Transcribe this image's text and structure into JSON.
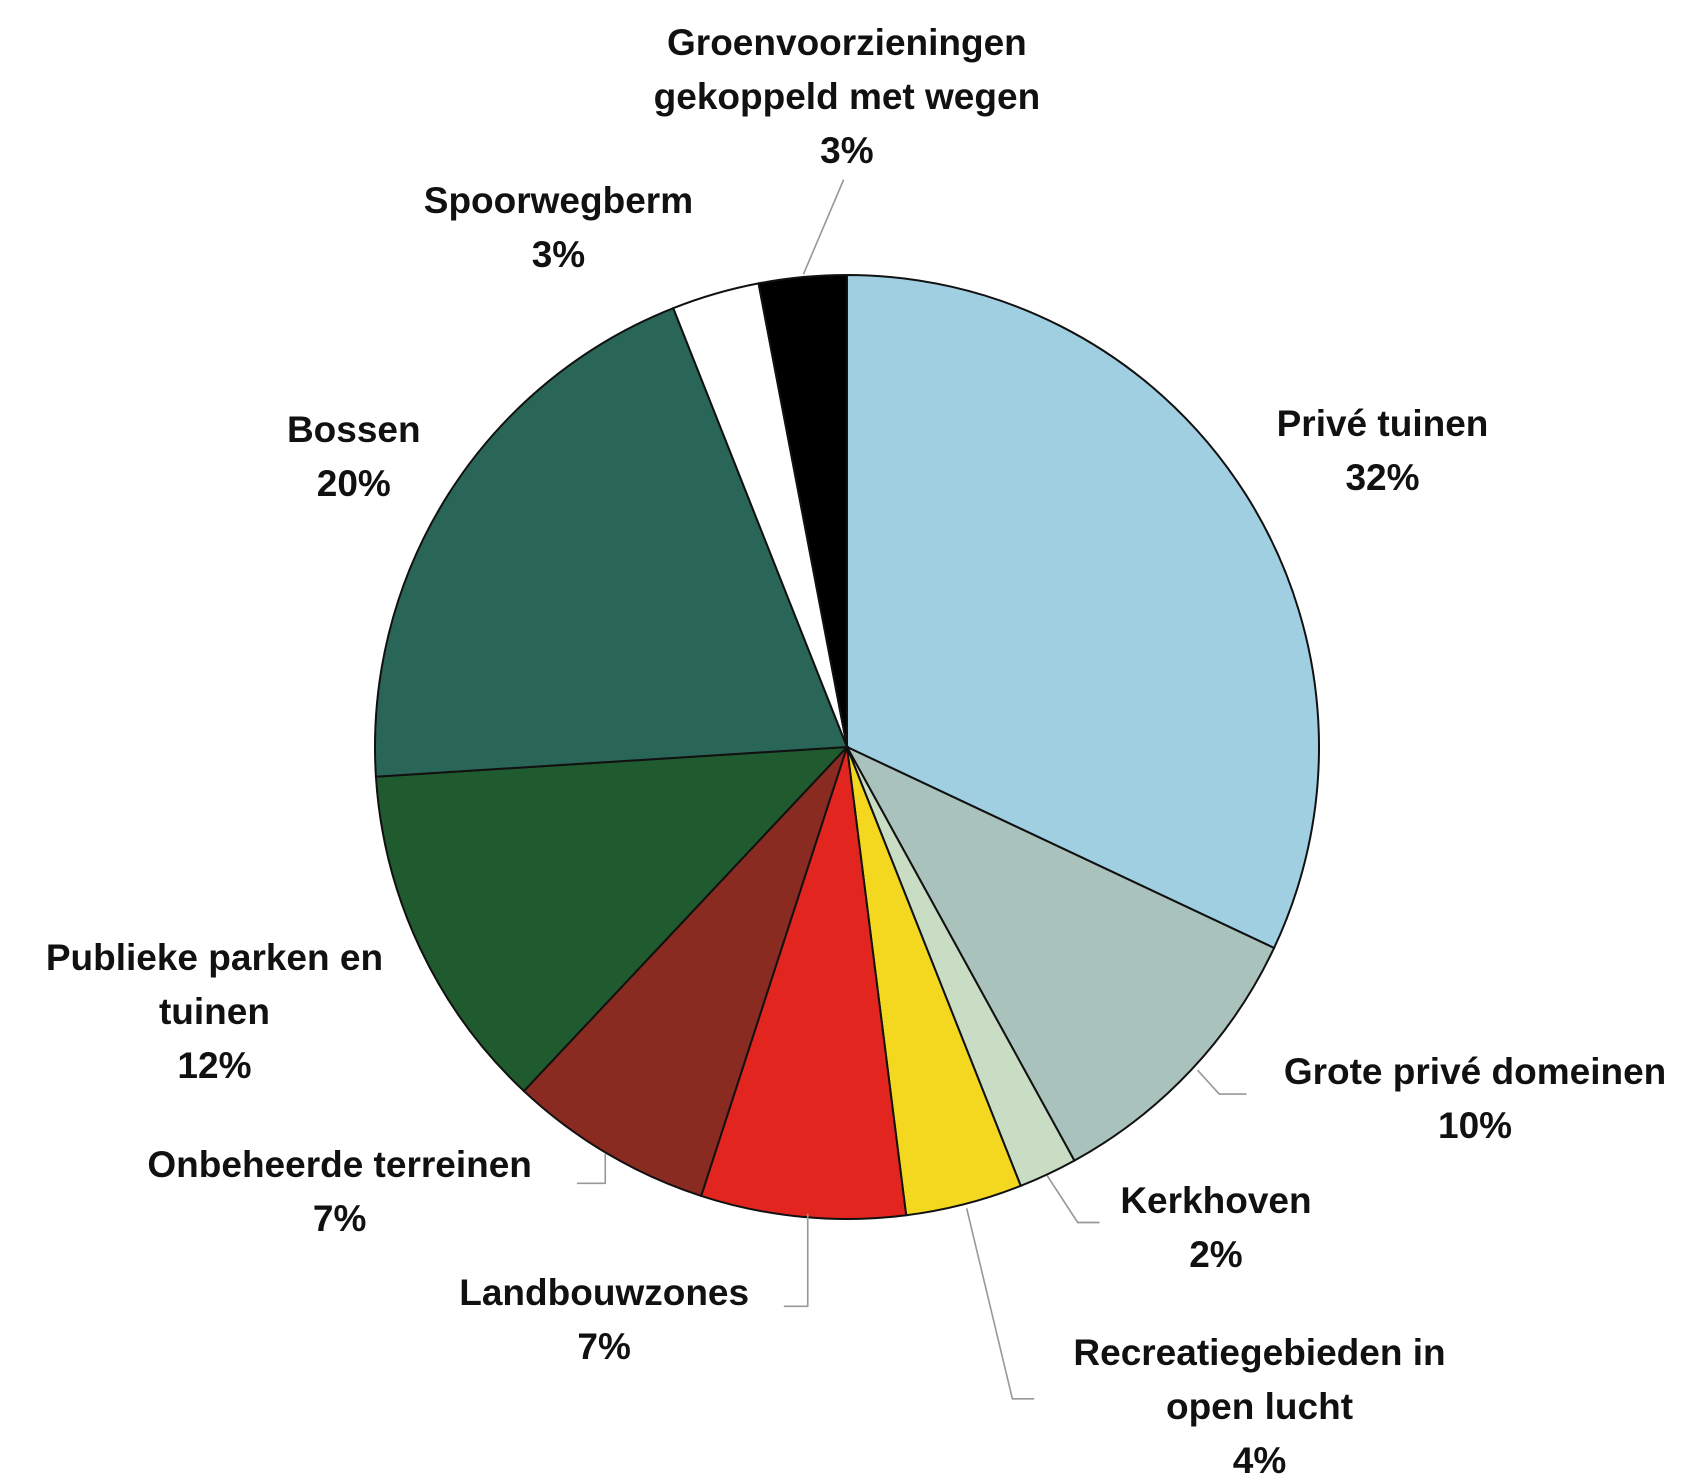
{
  "chart_data": {
    "type": "pie",
    "categories": [
      "Privé tuinen",
      "Grote privé domeinen",
      "Kerkhoven",
      "Recreatiegebieden in open lucht",
      "Landbouwzones",
      "Onbeheerde terreinen",
      "Publieke parken en tuinen",
      "Bossen",
      "Spoorwegberm",
      "Groenvoorzieningen gekoppeld met wegen"
    ],
    "values": [
      32,
      10,
      2,
      4,
      7,
      7,
      12,
      20,
      3,
      3
    ],
    "value_labels": [
      "32%",
      "10%",
      "2%",
      "4%",
      "7%",
      "7%",
      "12%",
      "20%",
      "3%",
      "3%"
    ],
    "colors": [
      "#9fcfe0",
      "#a9c2bb",
      "#c9dcc4",
      "#f3d81f",
      "#e2261f",
      "#8a2b22",
      "#1f5b2f",
      "#2a6658",
      "#ffffff",
      "#000000"
    ]
  }
}
